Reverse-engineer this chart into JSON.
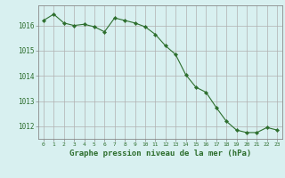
{
  "x": [
    0,
    1,
    2,
    3,
    4,
    5,
    6,
    7,
    8,
    9,
    10,
    11,
    12,
    13,
    14,
    15,
    16,
    17,
    18,
    19,
    20,
    21,
    22,
    23
  ],
  "y": [
    1016.2,
    1016.45,
    1016.1,
    1016.0,
    1016.05,
    1015.95,
    1015.75,
    1016.3,
    1016.2,
    1016.1,
    1015.95,
    1015.65,
    1015.2,
    1014.85,
    1014.05,
    1013.55,
    1013.35,
    1012.75,
    1012.2,
    1011.85,
    1011.75,
    1011.75,
    1011.95,
    1011.85
  ],
  "line_color": "#2d6e2d",
  "marker": "D",
  "marker_size": 2.2,
  "bg_color": "#d8f0f0",
  "grid_color": "#b0b0b0",
  "ylim": [
    1011.5,
    1016.8
  ],
  "yticks": [
    1012,
    1013,
    1014,
    1015,
    1016
  ],
  "xlabel": "Graphe pression niveau de la mer (hPa)",
  "xlabel_color": "#2d6e2d",
  "tick_color": "#2d6e2d",
  "axis_color": "#888888"
}
